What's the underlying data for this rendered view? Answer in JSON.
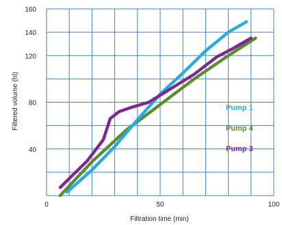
{
  "chart_data": {
    "type": "line",
    "title": "",
    "xlabel": "Filtration time (min)",
    "ylabel": "Filtered volume (hl)",
    "xlim": [
      0,
      100
    ],
    "ylim": [
      0,
      160
    ],
    "x_ticks": [
      {
        "value": 0,
        "label": "0"
      },
      {
        "value": 50,
        "label": "50"
      },
      {
        "value": 100,
        "label": "100"
      }
    ],
    "y_ticks": [
      {
        "value": 40,
        "label": "40"
      },
      {
        "value": 80,
        "label": "80"
      },
      {
        "value": 120,
        "label": "120"
      },
      {
        "value": 140,
        "label": "140"
      },
      {
        "value": 160,
        "label": "160"
      }
    ],
    "grid": true,
    "legend_position": "right",
    "series": [
      {
        "name": "Pump 1",
        "color": "#29abe2",
        "x": [
          9,
          20,
          30,
          40,
          50,
          60,
          70,
          80,
          88
        ],
        "y": [
          3,
          22,
          42,
          65,
          87,
          105,
          124,
          140,
          149
        ]
      },
      {
        "name": "Pump 4",
        "color": "#5b8c32",
        "x": [
          6,
          20,
          35,
          50,
          65,
          80,
          92
        ],
        "y": [
          0,
          29,
          56,
          78,
          100,
          120,
          135
        ]
      },
      {
        "name": "Pump 3",
        "color": "#7b2a8c",
        "x": [
          6,
          18,
          25,
          28,
          32,
          38,
          45,
          50,
          55,
          65,
          75,
          82,
          90
        ],
        "y": [
          7,
          30,
          48,
          66,
          72,
          76,
          80,
          86,
          92,
          104,
          119,
          126,
          135
        ]
      }
    ]
  }
}
